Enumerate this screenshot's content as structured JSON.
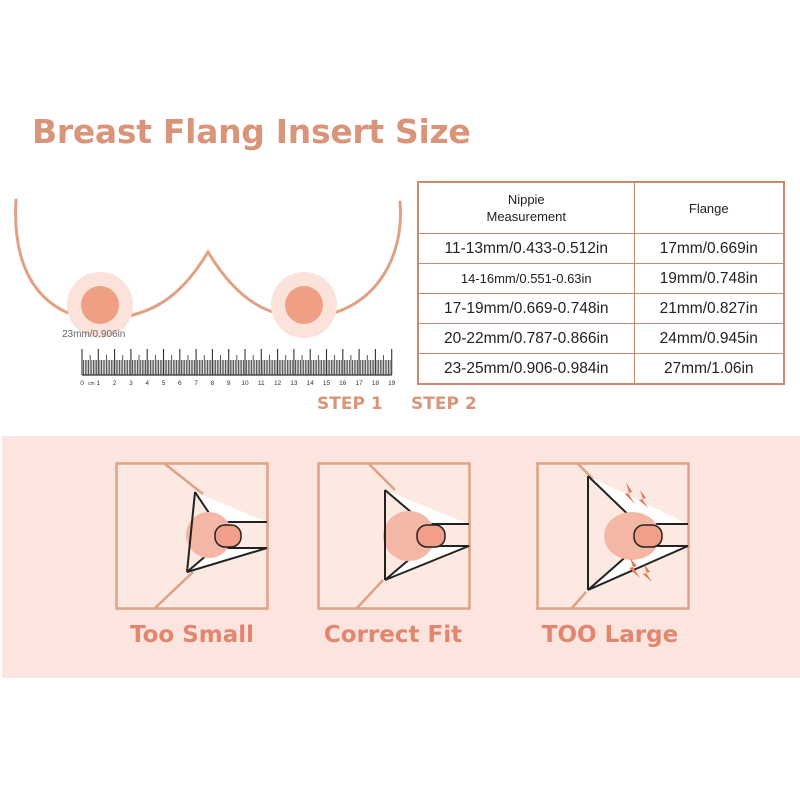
{
  "title": "Breast Flang Insert Size",
  "nipple_annotation": "23mm/0.906in",
  "ruler": {
    "unit": "cm",
    "labels": [
      "0",
      "1",
      "2",
      "3",
      "4",
      "5",
      "6",
      "7",
      "8",
      "9",
      "10",
      "11",
      "12",
      "13",
      "14",
      "15",
      "16",
      "17",
      "18",
      "19"
    ]
  },
  "steps": [
    "STEP 1",
    "STEP 2"
  ],
  "table": {
    "headers": [
      "Nippie\nMeasurement",
      "Flange"
    ],
    "rows": [
      [
        "11-13mm/0.433-0.512in",
        "17mm/0.669in"
      ],
      [
        "14-16mm/0.551-0.63in",
        "19mm/0.748in"
      ],
      [
        "17-19mm/0.669-0.748in",
        "21mm/0.827in"
      ],
      [
        "20-22mm/0.787-0.866in",
        "24mm/0.945in"
      ],
      [
        "23-25mm/0.906-0.984in",
        "27mm/1.06in"
      ]
    ]
  },
  "fits": [
    {
      "label": "Too Small",
      "variant": "small"
    },
    {
      "label": "Correct Fit",
      "variant": "correct"
    },
    {
      "label": "TOO Large",
      "variant": "large"
    }
  ],
  "colors": {
    "accent": "#d9957a",
    "outline": "#e0a184",
    "nipple": "#ee9f84",
    "areola_glow": "#fbe2da",
    "panel_bg": "#fbe5de",
    "fit_label": "#e2866f",
    "lightning": "#e8734e"
  }
}
